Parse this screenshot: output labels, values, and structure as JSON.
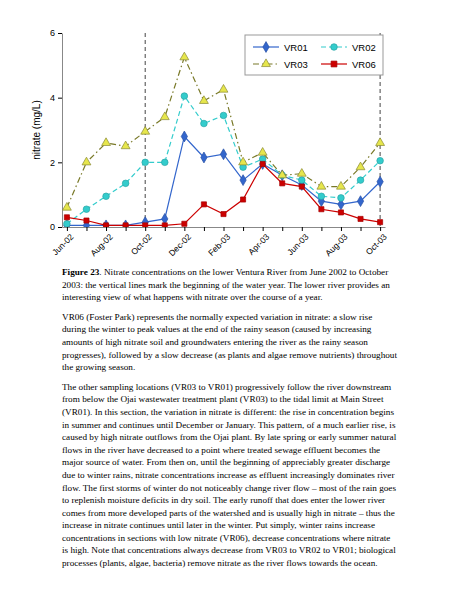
{
  "chart_data": {
    "type": "line",
    "y_label": "nitrate (mg/L)",
    "categories": [
      "Jun-02",
      null,
      "Aug-02",
      null,
      "Oct-02",
      null,
      "Dec-02",
      null,
      "Feb-03",
      null,
      "Apr-03",
      null,
      "Jun-03",
      null,
      "Aug-03",
      null,
      "Oct-03"
    ],
    "series": [
      {
        "name": "VR01",
        "color": "#3366cc",
        "marker": "diamond",
        "line_style": "solid",
        "values": [
          0.05,
          0.05,
          0.05,
          0.05,
          0.15,
          0.25,
          2.8,
          2.15,
          2.25,
          1.45,
          1.95,
          1.6,
          1.3,
          0.8,
          0.7,
          0.8,
          1.4
        ]
      },
      {
        "name": "VR02",
        "color": "#33cccc",
        "marker": "circle",
        "line_style": "dashed",
        "values": [
          0.1,
          0.55,
          0.95,
          1.35,
          2.0,
          2.0,
          4.05,
          3.2,
          3.45,
          1.85,
          2.1,
          1.6,
          1.45,
          0.95,
          0.9,
          1.45,
          2.05
        ]
      },
      {
        "name": "VR03",
        "color": "#e6e64c",
        "marker": "triangle",
        "line_style": "dashdot",
        "values": [
          0.6,
          2.0,
          2.6,
          2.5,
          2.95,
          3.4,
          5.25,
          3.9,
          4.25,
          2.0,
          2.3,
          1.6,
          1.65,
          1.25,
          1.25,
          1.85,
          2.6
        ]
      },
      {
        "name": "VR06",
        "color": "#cc0000",
        "marker": "square",
        "line_style": "solid",
        "values": [
          0.3,
          0.2,
          0.05,
          0.05,
          0.05,
          0.05,
          0.1,
          0.7,
          0.4,
          0.85,
          1.95,
          1.35,
          1.25,
          0.55,
          0.45,
          0.25,
          0.15
        ]
      }
    ],
    "vertical_lines": [
      "Oct-02",
      "Oct-03"
    ],
    "ylim": [
      0,
      6
    ],
    "yticks": [
      0,
      2,
      4,
      6
    ],
    "grid": false,
    "legend": "top-right"
  },
  "caption_label": "Figure 23",
  "caption": ". Nitrate concentrations on the lower Ventura River from June 2002 to October 2003: the vertical lines mark the beginning of the water year.  The lower river provides an interesting view of what happens with nitrate over the course of a year.",
  "paragraphs": [
    "VR06 (Foster Park) represents the normally expected variation in nitrate: a slow rise during the winter to peak values at the end of the rainy season (caused by increasing amounts of high nitrate soil and groundwaters entering the river as the rainy season progresses), followed by a slow decrease (as plants and algae remove nutrients) throughout the growing season.",
    "The other sampling locations (VR03 to VR01) progressively follow the river downstream from below the Ojai wastewater treatment plant (VR03) to the tidal limit at Main Street (VR01).  In this section, the variation in nitrate is different: the rise in concentration begins in summer and continues until December or January.  This pattern, of a much earlier rise, is caused by high nitrate outflows from the Ojai plant.  By late spring or early summer natural flows in the river have decreased to a point where treated sewage effluent becomes the major source of water.  From then on, until the beginning of appreciably greater discharge due to winter rains, nitrate concentrations increase as effluent increasingly dominates river flow.  The first storms of winter do not noticeably change river flow – most of the rain goes to replenish moisture deficits in dry soil.  The early runoff that does enter the lower river comes from more developed parts of the watershed and is usually high in nitrate – thus the increase in nitrate continues until later in the winter.  Put simply, winter rains increase concentrations in sections with low nitrate (VR06), decrease concentrations where nitrate is high.  Note that concentrations always decrease from VR03 to VR02 to VR01; biological processes (plants, algae, bacteria) remove nitrate as the river flows towards the ocean."
  ]
}
